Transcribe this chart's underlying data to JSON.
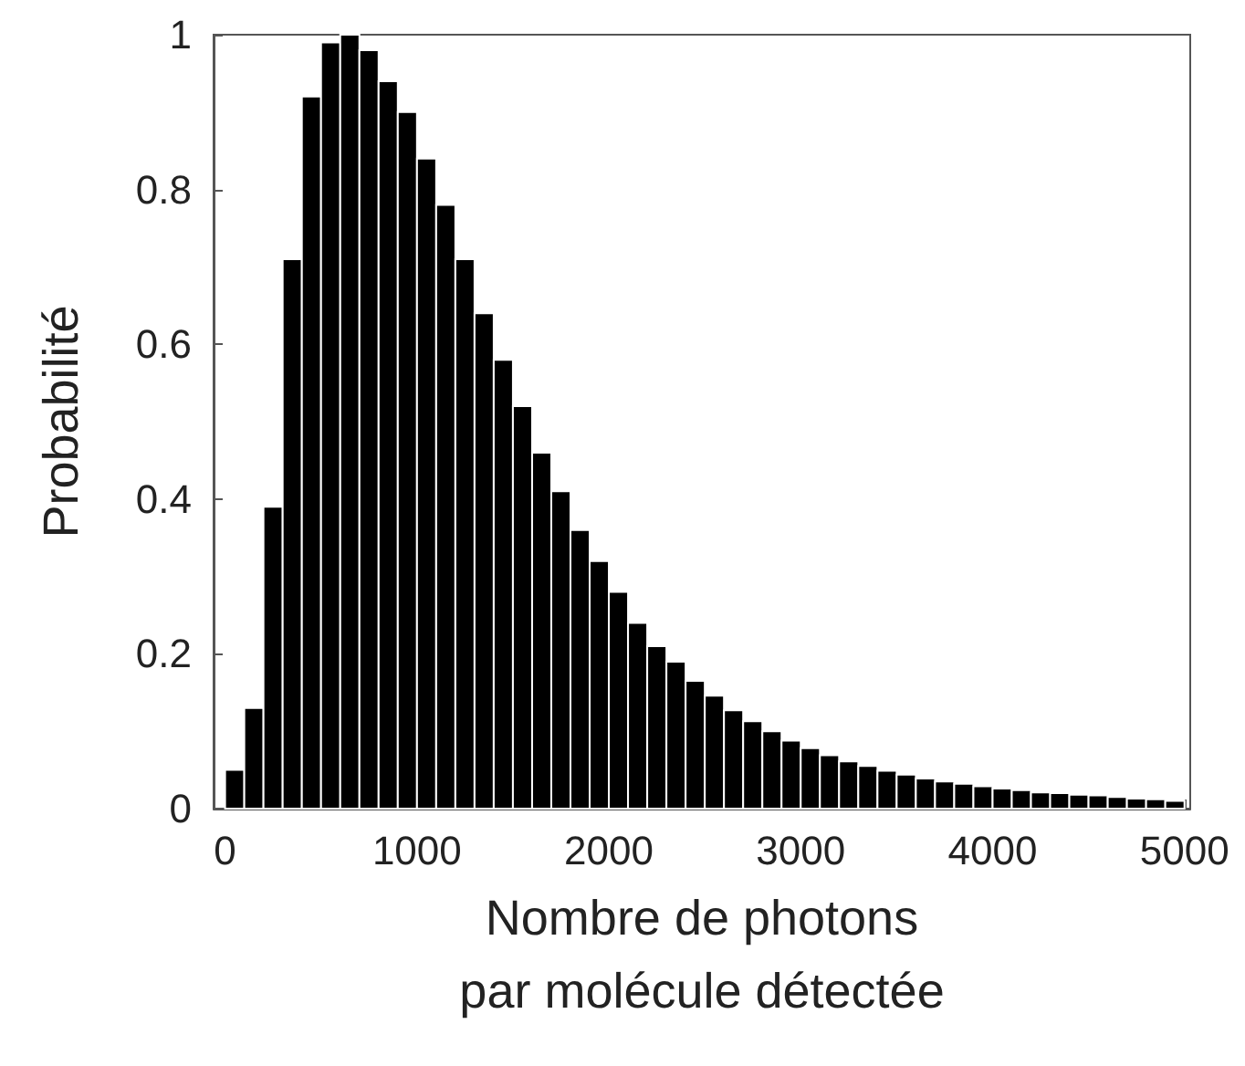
{
  "chart_data": {
    "type": "histogram",
    "xlabel": "Nombre de photons\npar molécule détectée",
    "ylabel": "Probabilité",
    "color": "#000000",
    "bins": [
      0,
      100,
      200,
      300,
      400,
      500,
      600,
      700,
      800,
      900,
      1000,
      1100,
      1200,
      1300,
      1400,
      1500,
      1600,
      1700,
      1800,
      1900,
      2000,
      2100,
      2200,
      2300,
      2400,
      2500,
      2600,
      2700,
      2800,
      2900,
      3000,
      3100,
      3200,
      3300,
      3400,
      3500,
      3600,
      3700,
      3800,
      3900,
      4000,
      4100,
      4200,
      4300,
      4400,
      4500,
      4600,
      4700,
      4800,
      4900,
      5000
    ],
    "values": [
      0.05,
      0.13,
      0.39,
      0.71,
      0.92,
      0.99,
      1.0,
      0.98,
      0.94,
      0.9,
      0.84,
      0.78,
      0.71,
      0.64,
      0.58,
      0.52,
      0.46,
      0.41,
      0.36,
      0.32,
      0.28,
      0.24,
      0.21,
      0.19,
      0.165,
      0.146,
      0.127,
      0.113,
      0.1,
      0.088,
      0.078,
      0.069,
      0.061,
      0.055,
      0.049,
      0.044,
      0.039,
      0.035,
      0.032,
      0.029,
      0.026,
      0.024,
      0.021,
      0.02,
      0.018,
      0.017,
      0.015,
      0.013,
      0.012,
      0.01
    ],
    "xlim": [
      -60,
      5030
    ],
    "xticks": [
      0,
      1000,
      2000,
      3000,
      4000,
      5000
    ],
    "ylim": [
      0,
      1
    ],
    "yticks": [
      0,
      0.2,
      0.4,
      0.6,
      0.8,
      1
    ],
    "grid": false
  }
}
